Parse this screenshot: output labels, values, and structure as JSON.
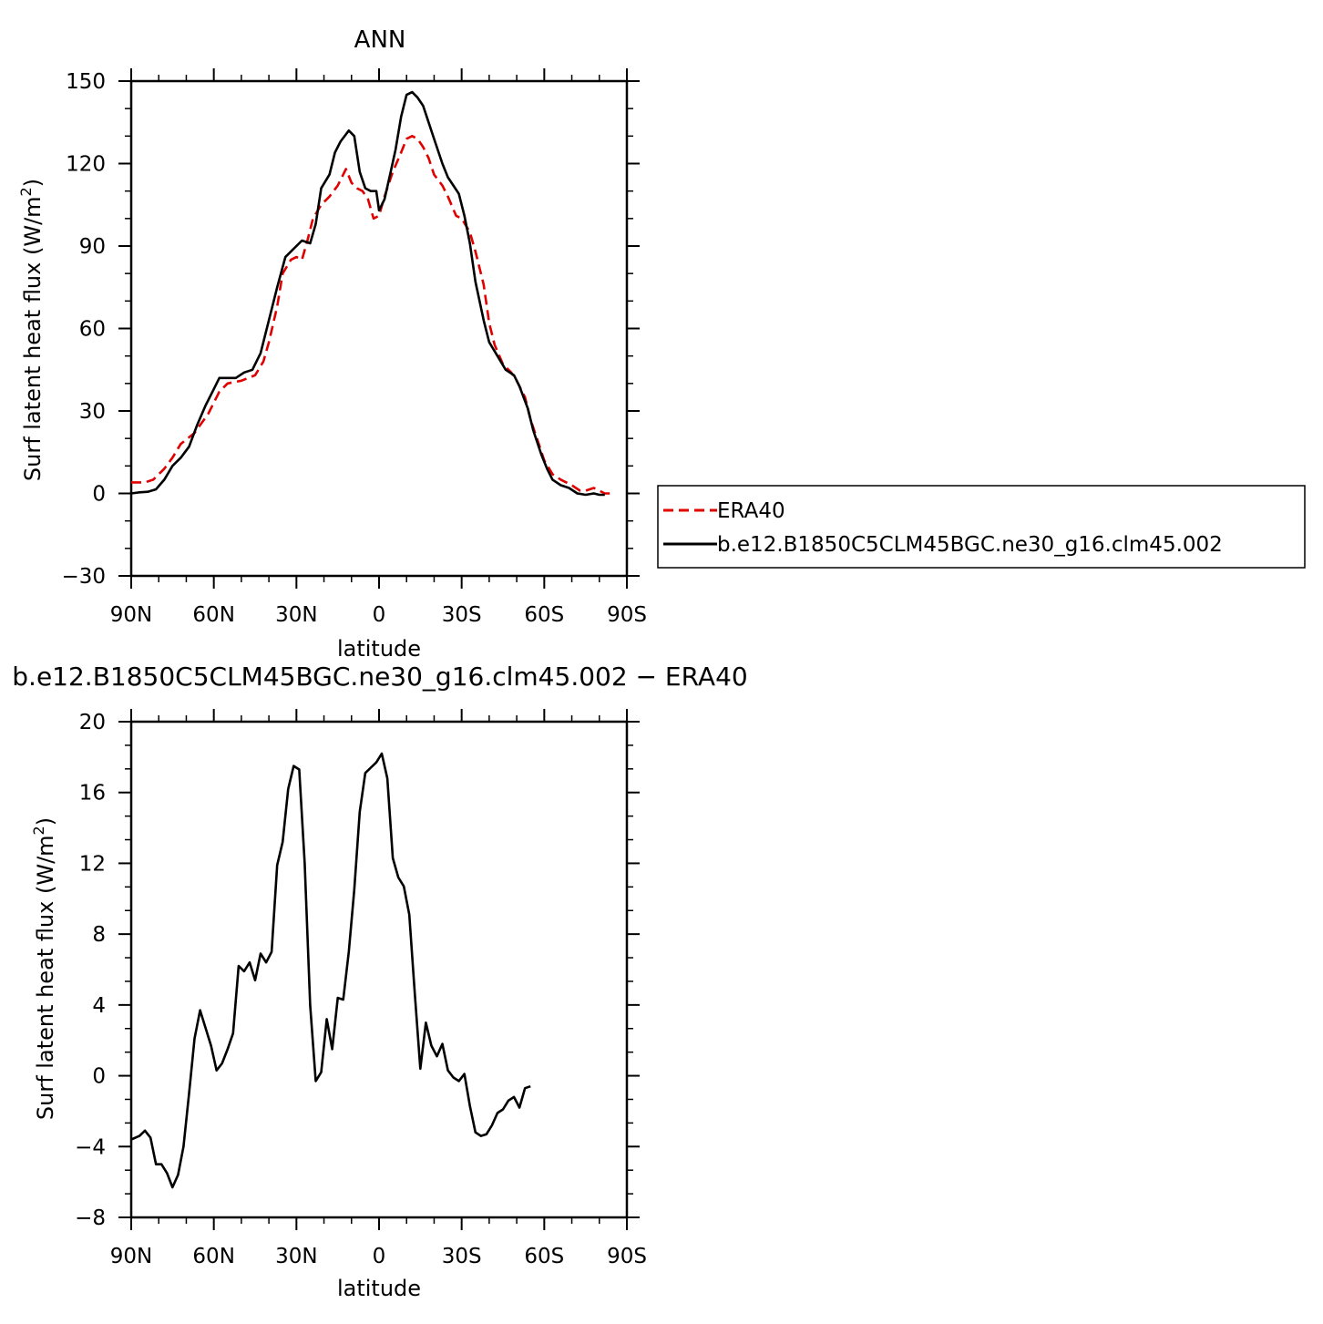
{
  "chart_data": [
    {
      "type": "line",
      "title": "ANN",
      "xlabel": "latitude",
      "ylabel": "Surf latent heat flux (W/m²)",
      "ylabel_main": "Surf latent heat flux (W/m",
      "ylabel_sup": "2",
      "ylabel_close": ")",
      "xlim": [
        -90,
        90
      ],
      "ylim": [
        -30,
        150
      ],
      "xticks": [
        -90,
        -60,
        -30,
        0,
        30,
        60,
        90
      ],
      "xtick_labels": [
        "90N",
        "60N",
        "30N",
        "0",
        "30S",
        "60S",
        "90S"
      ],
      "yticks": [
        -30,
        0,
        30,
        60,
        90,
        120,
        150
      ],
      "ytick_labels": [
        "−30",
        "0",
        "30",
        "60",
        "90",
        "120",
        "150"
      ],
      "legend_position": "right",
      "series": [
        {
          "name": "ERA40",
          "color": "#e00000",
          "dash": "dashed",
          "points": [
            [
              -90,
              4
            ],
            [
              -85,
              4
            ],
            [
              -82,
              5
            ],
            [
              -78,
              9
            ],
            [
              -75,
              13
            ],
            [
              -72,
              18
            ],
            [
              -67,
              22
            ],
            [
              -62,
              29
            ],
            [
              -58,
              37
            ],
            [
              -55,
              40
            ],
            [
              -50,
              41
            ],
            [
              -45,
              43
            ],
            [
              -42,
              48
            ],
            [
              -40,
              55
            ],
            [
              -37,
              68
            ],
            [
              -35,
              80
            ],
            [
              -32,
              85
            ],
            [
              -30,
              86
            ],
            [
              -28,
              85
            ],
            [
              -26,
              92
            ],
            [
              -24,
              100
            ],
            [
              -21,
              105
            ],
            [
              -18,
              108
            ],
            [
              -15,
              112
            ],
            [
              -12,
              118
            ],
            [
              -10,
              113
            ],
            [
              -8,
              111
            ],
            [
              -6,
              110
            ],
            [
              -4,
              107
            ],
            [
              -2,
              100
            ],
            [
              0,
              101
            ],
            [
              2,
              108
            ],
            [
              5,
              117
            ],
            [
              8,
              124
            ],
            [
              10,
              129
            ],
            [
              12,
              130
            ],
            [
              14,
              129
            ],
            [
              16,
              126
            ],
            [
              18,
              122
            ],
            [
              20,
              116
            ],
            [
              23,
              112
            ],
            [
              25,
              108
            ],
            [
              28,
              101
            ],
            [
              30,
              100
            ],
            [
              33,
              95
            ],
            [
              35,
              88
            ],
            [
              38,
              76
            ],
            [
              40,
              62
            ],
            [
              42,
              54
            ],
            [
              45,
              47
            ],
            [
              48,
              44
            ],
            [
              50,
              41
            ],
            [
              53,
              35
            ],
            [
              55,
              27
            ],
            [
              58,
              18
            ],
            [
              60,
              12
            ],
            [
              63,
              7
            ],
            [
              66,
              5
            ],
            [
              68,
              4
            ],
            [
              70,
              3
            ],
            [
              73,
              1
            ],
            [
              75,
              1
            ],
            [
              78,
              2
            ],
            [
              80,
              1
            ],
            [
              82,
              0
            ],
            [
              84,
              0
            ]
          ]
        },
        {
          "name": "b.e12.B1850C5CLM45BGC.ne30_g16.clm45.002",
          "color": "#000000",
          "dash": "solid",
          "points": [
            [
              -90,
              0
            ],
            [
              -87,
              0.4
            ],
            [
              -84,
              0.6
            ],
            [
              -81,
              1.5
            ],
            [
              -78,
              5
            ],
            [
              -75,
              10
            ],
            [
              -72,
              13
            ],
            [
              -69,
              17
            ],
            [
              -66,
              25
            ],
            [
              -63,
              32
            ],
            [
              -60,
              38
            ],
            [
              -58,
              42
            ],
            [
              -55,
              42
            ],
            [
              -52,
              42
            ],
            [
              -49,
              44
            ],
            [
              -46,
              45
            ],
            [
              -43,
              51
            ],
            [
              -40,
              63
            ],
            [
              -37,
              75
            ],
            [
              -34,
              86
            ],
            [
              -31,
              89
            ],
            [
              -28,
              92
            ],
            [
              -25,
              91
            ],
            [
              -23,
              98
            ],
            [
              -21,
              111
            ],
            [
              -18,
              116
            ],
            [
              -16,
              124
            ],
            [
              -14,
              128
            ],
            [
              -11,
              132
            ],
            [
              -9,
              130
            ],
            [
              -7,
              117
            ],
            [
              -5,
              111
            ],
            [
              -3,
              110
            ],
            [
              -1,
              110
            ],
            [
              0,
              103
            ],
            [
              2,
              107
            ],
            [
              4,
              116
            ],
            [
              6,
              125
            ],
            [
              8,
              137
            ],
            [
              10,
              145
            ],
            [
              12,
              146
            ],
            [
              14,
              144
            ],
            [
              16,
              141
            ],
            [
              18,
              135
            ],
            [
              20,
              129
            ],
            [
              23,
              120
            ],
            [
              25,
              115
            ],
            [
              27,
              112
            ],
            [
              29,
              109
            ],
            [
              31,
              101
            ],
            [
              33,
              91
            ],
            [
              35,
              77
            ],
            [
              38,
              63
            ],
            [
              40,
              55
            ],
            [
              43,
              50
            ],
            [
              46,
              45
            ],
            [
              49,
              43
            ],
            [
              51,
              39
            ],
            [
              54,
              31
            ],
            [
              56,
              23
            ],
            [
              59,
              14
            ],
            [
              61,
              9
            ],
            [
              63,
              5
            ],
            [
              66,
              3
            ],
            [
              69,
              2
            ],
            [
              72,
              0
            ],
            [
              75,
              -0.5
            ],
            [
              78,
              0
            ],
            [
              80,
              -0.5
            ],
            [
              82,
              -0.5
            ]
          ]
        }
      ],
      "legend": [
        {
          "name": "ERA40"
        },
        {
          "name": "b.e12.B1850C5CLM45BGC.ne30_g16.clm45.002"
        }
      ]
    },
    {
      "type": "line",
      "title": "b.e12.B1850C5CLM45BGC.ne30_g16.clm45.002 − ERA40",
      "xlabel": "latitude",
      "ylabel": "Surf latent heat flux (W/m²)",
      "ylabel_main": "Surf latent heat flux (W/m",
      "ylabel_sup": "2",
      "ylabel_close": ")",
      "xlim": [
        -90,
        90
      ],
      "ylim": [
        -8,
        20
      ],
      "xticks": [
        -90,
        -60,
        -30,
        0,
        30,
        60,
        90
      ],
      "xtick_labels": [
        "90N",
        "60N",
        "30N",
        "0",
        "30S",
        "60S",
        "90S"
      ],
      "yticks": [
        -8,
        -4,
        0,
        4,
        8,
        12,
        16,
        20
      ],
      "ytick_labels": [
        "−8",
        "−4",
        "0",
        "4",
        "8",
        "12",
        "16",
        "20"
      ],
      "series": [
        {
          "color": "#000000",
          "dash": "solid",
          "points": [
            [
              -90,
              -3.6
            ],
            [
              -87,
              -3.4
            ],
            [
              -85,
              -3.1
            ],
            [
              -83,
              -3.5
            ],
            [
              -81,
              -5.0
            ],
            [
              -79,
              -5.0
            ],
            [
              -77,
              -5.5
            ],
            [
              -75,
              -6.3
            ],
            [
              -73,
              -5.6
            ],
            [
              -71,
              -4.0
            ],
            [
              -69,
              -1.0
            ],
            [
              -67,
              2.1
            ],
            [
              -65,
              3.7
            ],
            [
              -63,
              2.7
            ],
            [
              -61,
              1.7
            ],
            [
              -59,
              0.3
            ],
            [
              -57,
              0.7
            ],
            [
              -55,
              1.5
            ],
            [
              -53,
              2.4
            ],
            [
              -51,
              6.2
            ],
            [
              -49,
              5.9
            ],
            [
              -47,
              6.4
            ],
            [
              -45,
              5.4
            ],
            [
              -43,
              6.9
            ],
            [
              -41,
              6.4
            ],
            [
              -39,
              7.0
            ],
            [
              -37,
              11.9
            ],
            [
              -35,
              13.2
            ],
            [
              -33,
              16.2
            ],
            [
              -31,
              17.5
            ],
            [
              -29,
              17.3
            ],
            [
              -27,
              12.0
            ],
            [
              -25,
              4.0
            ],
            [
              -23,
              -0.3
            ],
            [
              -21,
              0.2
            ],
            [
              -19,
              3.2
            ],
            [
              -17,
              1.5
            ],
            [
              -15,
              4.4
            ],
            [
              -13,
              4.3
            ],
            [
              -11,
              7.0
            ],
            [
              -9,
              10.5
            ],
            [
              -7,
              14.9
            ],
            [
              -5,
              17.1
            ],
            [
              -3,
              17.4
            ],
            [
              -1,
              17.7
            ],
            [
              1,
              18.2
            ],
            [
              3,
              16.8
            ],
            [
              5,
              12.3
            ],
            [
              7,
              11.2
            ],
            [
              9,
              10.7
            ],
            [
              11,
              9.1
            ],
            [
              13,
              4.6
            ],
            [
              15,
              0.4
            ],
            [
              17,
              3.0
            ],
            [
              19,
              1.7
            ],
            [
              21,
              1.1
            ],
            [
              23,
              1.8
            ],
            [
              25,
              0.3
            ],
            [
              27,
              -0.1
            ],
            [
              29,
              -0.3
            ],
            [
              31,
              0.1
            ],
            [
              33,
              -1.7
            ],
            [
              35,
              -3.2
            ],
            [
              37,
              -3.4
            ],
            [
              39,
              -3.3
            ],
            [
              41,
              -2.8
            ],
            [
              43,
              -2.1
            ],
            [
              45,
              -1.9
            ],
            [
              47,
              -1.4
            ],
            [
              49,
              -1.2
            ],
            [
              51,
              -1.8
            ],
            [
              53,
              -0.7
            ],
            [
              55,
              -0.6
            ]
          ]
        }
      ]
    }
  ]
}
